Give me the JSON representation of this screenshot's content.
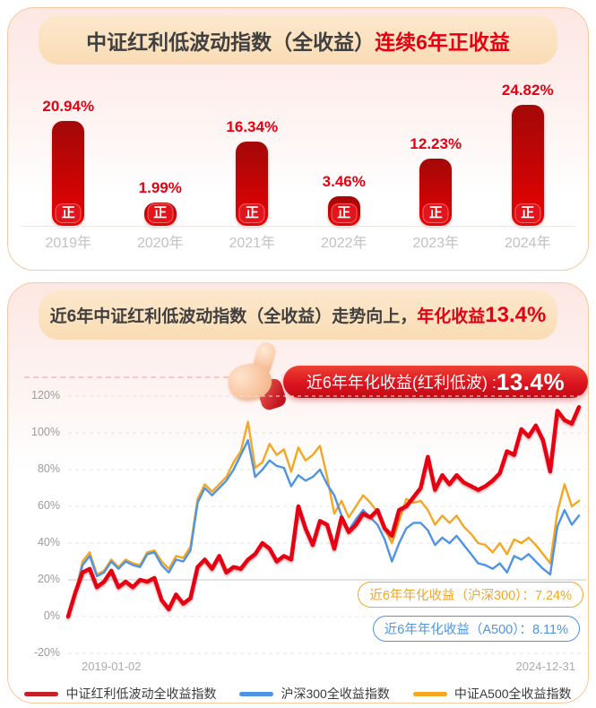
{
  "card1": {
    "title_black": "中证红利低波动指数（全收益）",
    "title_red": "连续6年正收益"
  },
  "card2": {
    "title_black": "近6年中证红利低波动指数（全收益）走势向上，",
    "title_red": "年化收益",
    "title_red_big": "13.4%",
    "badge": {
      "label": "近6年年化收益(红利低波) :",
      "value": "13.4%"
    }
  },
  "colors": {
    "accent_red": "#E60012",
    "bar_top": "#A30808",
    "bar_bottom": "#EC0202",
    "band_peach": "#FADCB4",
    "line_red": "#E60012",
    "line_blue": "#4E94E6",
    "line_orange": "#F5A623",
    "legend_red_swatch": "#C32128",
    "grid": "#E4E4E4"
  },
  "chart_data": [
    {
      "type": "bar",
      "title": "中证红利低波动指数（全收益）连续6年正收益",
      "categories": [
        "2019年",
        "2020年",
        "2021年",
        "2022年",
        "2023年",
        "2024年"
      ],
      "values": [
        20.94,
        1.99,
        16.34,
        3.46,
        12.23,
        24.82
      ],
      "value_suffix": "%",
      "bar_label": "正",
      "ylim": [
        0,
        26
      ]
    },
    {
      "type": "line",
      "title": "近6年中证红利低波动指数（全收益）走势向上，年化收益13.4%",
      "x_start": "2019-01-02",
      "x_end": "2024-12-31",
      "ylabel": "",
      "ylim": [
        -20,
        120
      ],
      "yticks": [
        120,
        100,
        80,
        60,
        40,
        20,
        0,
        -20
      ],
      "grid": "dashed, 20% line solid",
      "legend_position": "bottom",
      "series": [
        {
          "name": "中证A500全收益指数",
          "color": "#F5A623",
          "values": [
            0,
            13,
            30,
            35,
            23,
            25,
            31,
            27,
            31,
            29,
            28,
            35,
            36,
            30,
            26,
            33,
            32,
            38,
            64,
            72,
            68,
            72,
            76,
            84,
            90,
            106,
            81,
            84,
            94,
            88,
            91,
            79,
            92,
            85,
            88,
            93,
            76,
            56,
            63,
            54,
            60,
            66,
            62,
            57,
            48,
            40,
            52,
            64,
            62,
            63,
            58,
            50,
            55,
            51,
            55,
            49,
            45,
            40,
            39,
            35,
            40,
            34,
            42,
            40,
            43,
            39,
            34,
            29,
            57,
            72,
            60,
            63
          ]
        },
        {
          "name": "沪深300全收益指数",
          "color": "#4E94E6",
          "values": [
            0,
            12,
            28,
            33,
            22,
            24,
            30,
            26,
            30,
            28,
            27,
            34,
            35,
            28,
            24,
            31,
            30,
            36,
            62,
            70,
            66,
            70,
            74,
            80,
            88,
            96,
            76,
            80,
            85,
            82,
            81,
            71,
            77,
            74,
            76,
            80,
            72,
            66,
            55,
            47,
            53,
            58,
            54,
            50,
            42,
            30,
            40,
            48,
            51,
            51,
            47,
            39,
            43,
            40,
            44,
            39,
            34,
            29,
            28,
            26,
            29,
            24,
            33,
            31,
            34,
            30,
            26,
            23,
            49,
            58,
            50,
            55
          ]
        },
        {
          "name": "中证红利低波动全收益指数",
          "color": "#E60012",
          "values": [
            0,
            13,
            24,
            26,
            16,
            19,
            25,
            16,
            19,
            16,
            20,
            19,
            21,
            9,
            4,
            12,
            7,
            10,
            27,
            31,
            26,
            33,
            24,
            27,
            26,
            31,
            34,
            40,
            37,
            30,
            33,
            31,
            60,
            48,
            39,
            52,
            50,
            37,
            54,
            46,
            50,
            56,
            54,
            58,
            48,
            44,
            58,
            60,
            65,
            70,
            87,
            69,
            77,
            72,
            77,
            73,
            71,
            69,
            71,
            74,
            78,
            90,
            88,
            102,
            98,
            104,
            96,
            79,
            112,
            107,
            105,
            114
          ]
        }
      ],
      "legend_order": [
        "中证红利低波动全收益指数",
        "沪深300全收益指数",
        "中证A500全收益指数"
      ],
      "legend_colors": [
        "#C32128",
        "#4E94E6",
        "#F5A623"
      ],
      "annotations": [
        {
          "text": "近6年年化收益（沪深300）：7.24%",
          "color": "#F5A623"
        },
        {
          "text": "近6年年化收益（A500）：8.11%",
          "color": "#4E94E6"
        }
      ]
    }
  ]
}
